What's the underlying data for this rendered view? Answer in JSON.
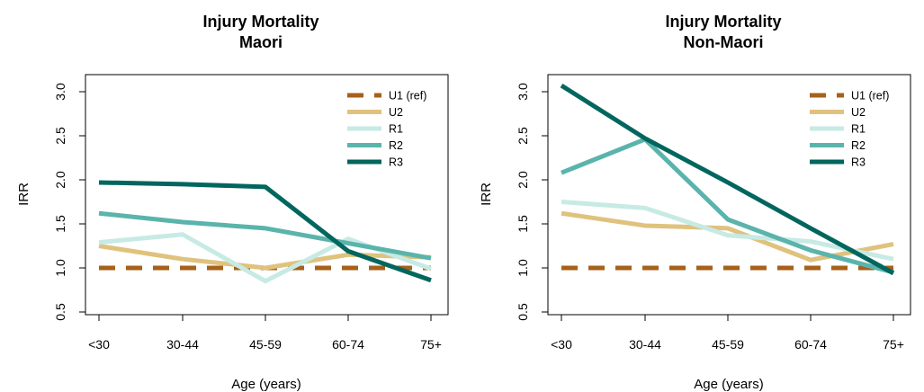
{
  "chart_data": [
    {
      "type": "line",
      "title": [
        "Injury Mortality",
        "Maori"
      ],
      "xlabel": "Age (years)",
      "ylabel": "IRR",
      "categories": [
        "<30",
        "30-44",
        "45-59",
        "60-74",
        "75+"
      ],
      "ylim": [
        0.5,
        3.0
      ],
      "yticks": [
        "0.5",
        "1.0",
        "1.5",
        "2.0",
        "2.5",
        "3.0"
      ],
      "legend_position": "top-right",
      "grid": false,
      "series": [
        {
          "name": "U1 (ref)",
          "color": "#a6611a",
          "dashed": true,
          "values": [
            1.0,
            1.0,
            1.0,
            1.0,
            1.0
          ]
        },
        {
          "name": "U2",
          "color": "#dfc27d",
          "dashed": false,
          "values": [
            1.25,
            1.1,
            1.0,
            1.15,
            1.12
          ]
        },
        {
          "name": "R1",
          "color": "#c7eae5",
          "dashed": false,
          "values": [
            1.29,
            1.38,
            0.85,
            1.33,
            0.99
          ]
        },
        {
          "name": "R2",
          "color": "#5ab4ac",
          "dashed": false,
          "values": [
            1.62,
            1.52,
            1.45,
            1.28,
            1.11
          ]
        },
        {
          "name": "R3",
          "color": "#01665e",
          "dashed": false,
          "values": [
            1.97,
            1.95,
            1.92,
            1.19,
            0.86
          ]
        }
      ]
    },
    {
      "type": "line",
      "title": [
        "Injury Mortality",
        "Non-Maori"
      ],
      "xlabel": "Age (years)",
      "ylabel": "IRR",
      "categories": [
        "<30",
        "30-44",
        "45-59",
        "60-74",
        "75+"
      ],
      "ylim": [
        0.5,
        3.0
      ],
      "yticks": [
        "0.5",
        "1.0",
        "1.5",
        "2.0",
        "2.5",
        "3.0"
      ],
      "legend_position": "top-right",
      "grid": false,
      "series": [
        {
          "name": "U1 (ref)",
          "color": "#a6611a",
          "dashed": true,
          "values": [
            1.0,
            1.0,
            1.0,
            1.0,
            1.0
          ]
        },
        {
          "name": "U2",
          "color": "#dfc27d",
          "dashed": false,
          "values": [
            1.62,
            1.48,
            1.45,
            1.09,
            1.27
          ]
        },
        {
          "name": "R1",
          "color": "#c7eae5",
          "dashed": false,
          "values": [
            1.75,
            1.68,
            1.37,
            1.3,
            1.1
          ]
        },
        {
          "name": "R2",
          "color": "#5ab4ac",
          "dashed": false,
          "values": [
            2.08,
            2.46,
            1.55,
            1.2,
            0.95
          ]
        },
        {
          "name": "R3",
          "color": "#01665e",
          "dashed": false,
          "values": [
            3.07,
            2.47,
            1.97,
            1.45,
            0.94
          ]
        }
      ]
    }
  ]
}
